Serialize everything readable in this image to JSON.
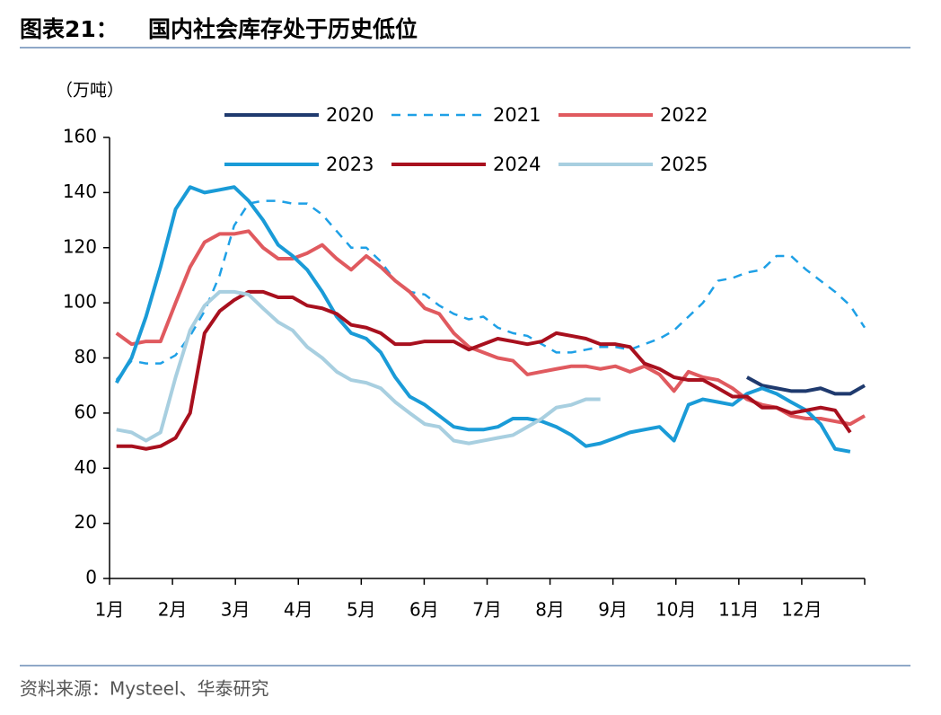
{
  "chart_data": {
    "type": "line",
    "figure_label": "图表21：",
    "title": "国内社会库存处于历史低位",
    "y_label": "（万吨）",
    "source": "资料来源：Mysteel、华泰研究",
    "xlim": [
      1,
      13
    ],
    "xticks": [
      {
        "value": 1,
        "label": "1月"
      },
      {
        "value": 2,
        "label": "2月"
      },
      {
        "value": 3,
        "label": "3月"
      },
      {
        "value": 4,
        "label": "4月"
      },
      {
        "value": 5,
        "label": "5月"
      },
      {
        "value": 6,
        "label": "6月"
      },
      {
        "value": 7,
        "label": "7月"
      },
      {
        "value": 8,
        "label": "8月"
      },
      {
        "value": 9,
        "label": "9月"
      },
      {
        "value": 10,
        "label": "10月"
      },
      {
        "value": 11,
        "label": "11月"
      },
      {
        "value": 12,
        "label": "12月"
      }
    ],
    "ylim": [
      0,
      160
    ],
    "yticks": [
      0,
      20,
      40,
      60,
      80,
      100,
      120,
      140,
      160
    ],
    "x": [
      1.11,
      1.35,
      1.58,
      1.81,
      2.05,
      2.28,
      2.51,
      2.75,
      2.98,
      3.21,
      3.44,
      3.68,
      3.91,
      4.14,
      4.38,
      4.61,
      4.84,
      5.08,
      5.31,
      5.54,
      5.77,
      6.01,
      6.24,
      6.47,
      6.71,
      6.94,
      7.17,
      7.41,
      7.64,
      7.87,
      8.1,
      8.34,
      8.57,
      8.8,
      9.04,
      9.27,
      9.5,
      9.74,
      9.97,
      10.2,
      10.43,
      10.67,
      10.9,
      11.13,
      11.37,
      11.6,
      11.83,
      12.07,
      12.3,
      12.53,
      12.77,
      13.0
    ],
    "series": [
      {
        "name": "2020",
        "color": "#1f3a6e",
        "dashed": false,
        "values": [
          null,
          null,
          null,
          null,
          null,
          null,
          null,
          null,
          null,
          null,
          null,
          null,
          null,
          null,
          null,
          null,
          null,
          null,
          null,
          null,
          null,
          null,
          null,
          null,
          null,
          null,
          null,
          null,
          null,
          null,
          null,
          null,
          null,
          null,
          null,
          null,
          null,
          null,
          null,
          null,
          null,
          null,
          null,
          73,
          70,
          69,
          68,
          68,
          69,
          67,
          67,
          70
        ]
      },
      {
        "name": "2021",
        "color": "#1ea0e6",
        "dashed": true,
        "values": [
          72,
          79,
          78,
          78,
          81,
          88,
          97,
          110,
          128,
          136,
          137,
          137,
          136,
          136,
          132,
          126,
          120,
          120,
          115,
          108,
          104,
          103,
          99,
          96,
          94,
          95,
          91,
          89,
          88,
          85,
          82,
          82,
          83,
          84,
          84,
          83,
          85,
          87,
          90,
          95,
          100,
          108,
          109,
          111,
          112,
          117,
          117,
          112,
          108,
          104,
          99,
          91
        ]
      },
      {
        "name": "2022",
        "color": "#e05a5f",
        "dashed": false,
        "values": [
          89,
          85,
          86,
          86,
          100,
          113,
          122,
          125,
          125,
          126,
          120,
          116,
          116,
          118,
          121,
          116,
          112,
          117,
          113,
          108,
          104,
          98,
          96,
          89,
          84,
          82,
          80,
          79,
          74,
          75,
          76,
          77,
          77,
          76,
          77,
          75,
          77,
          74,
          68,
          75,
          73,
          72,
          69,
          65,
          63,
          62,
          59,
          58,
          58,
          57,
          56,
          59
        ]
      },
      {
        "name": "2023",
        "color": "#1a9bd7",
        "dashed": false,
        "values": [
          71,
          80,
          95,
          113,
          134,
          142,
          140,
          141,
          142,
          137,
          130,
          121,
          117,
          112,
          104,
          95,
          89,
          87,
          82,
          73,
          66,
          63,
          59,
          55,
          54,
          54,
          55,
          58,
          58,
          57,
          55,
          52,
          48,
          49,
          51,
          53,
          54,
          55,
          50,
          63,
          65,
          64,
          63,
          67,
          69,
          67,
          64,
          61,
          56,
          47,
          46,
          null
        ]
      },
      {
        "name": "2024",
        "color": "#a8101e",
        "dashed": false,
        "values": [
          48,
          48,
          47,
          48,
          51,
          60,
          89,
          97,
          101,
          104,
          104,
          102,
          102,
          99,
          98,
          96,
          92,
          91,
          89,
          85,
          85,
          86,
          86,
          86,
          83,
          85,
          87,
          86,
          85,
          86,
          89,
          88,
          87,
          85,
          85,
          84,
          78,
          76,
          73,
          72,
          72,
          69,
          66,
          66,
          62,
          62,
          60,
          61,
          62,
          61,
          53,
          null
        ]
      },
      {
        "name": "2025",
        "color": "#a8cfe0",
        "dashed": false,
        "values": [
          54,
          53,
          50,
          53,
          73,
          90,
          99,
          104,
          104,
          103,
          98,
          93,
          90,
          84,
          80,
          75,
          72,
          71,
          69,
          64,
          60,
          56,
          55,
          50,
          49,
          50,
          51,
          52,
          55,
          58,
          62,
          63,
          65,
          65,
          null,
          null,
          null,
          null,
          null,
          null,
          null,
          null,
          null,
          null,
          null,
          null,
          null,
          null,
          null,
          null,
          null,
          null
        ]
      }
    ]
  }
}
